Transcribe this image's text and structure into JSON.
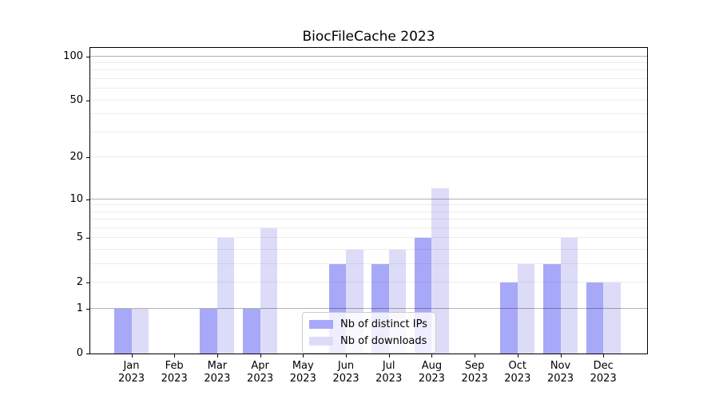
{
  "title": "BiocFileCache 2023",
  "legend": {
    "items": [
      {
        "label": "Nb of distinct IPs",
        "color": "#a8a8f8"
      },
      {
        "label": "Nb of downloads",
        "color": "#dcdcf9"
      }
    ]
  },
  "chart_data": {
    "type": "bar",
    "title": "BiocFileCache 2023",
    "categories": [
      "Jan 2023",
      "Feb 2023",
      "Mar 2023",
      "Apr 2023",
      "May 2023",
      "Jun 2023",
      "Jul 2023",
      "Aug 2023",
      "Sep 2023",
      "Oct 2023",
      "Nov 2023",
      "Dec 2023"
    ],
    "series": [
      {
        "name": "Nb of distinct IPs",
        "color": "#a8a8f8",
        "values": [
          1,
          0,
          1,
          1,
          0,
          3,
          3,
          5,
          0,
          2,
          3,
          2
        ]
      },
      {
        "name": "Nb of downloads",
        "color": "#dcdcf9",
        "values": [
          1,
          0,
          5,
          6,
          0,
          4,
          4,
          12,
          0,
          3,
          5,
          2
        ]
      }
    ],
    "xlabel": "",
    "ylabel": "",
    "y_ticks": [
      0,
      1,
      2,
      5,
      10,
      20,
      50,
      100
    ],
    "major_gridlines": [
      1,
      10,
      100
    ],
    "minor_gridlines": [
      2,
      3,
      4,
      5,
      6,
      7,
      8,
      9,
      20,
      30,
      40,
      50,
      60,
      70,
      80,
      90
    ],
    "y_scale": "log10(1+v)",
    "ylim": [
      0,
      116
    ],
    "grid": "on, drawn above bars",
    "legend_position": "lower center"
  }
}
